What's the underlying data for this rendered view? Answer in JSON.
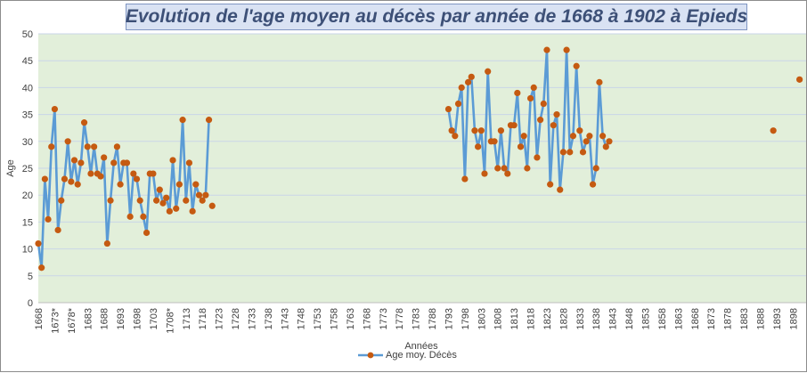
{
  "chart_data": {
    "type": "line",
    "title": "Evolution de l'age moyen au décès par année de 1668 à 1902 à Epieds",
    "xlabel": "Années",
    "ylabel": "Age",
    "ylim": [
      0,
      50
    ],
    "yticks": [
      0,
      5,
      10,
      15,
      20,
      25,
      30,
      35,
      40,
      45,
      50
    ],
    "xlim": [
      1668,
      1902
    ],
    "xtick_labels": [
      {
        "year": 1668,
        "label": "1668"
      },
      {
        "year": 1673,
        "label": "1673*"
      },
      {
        "year": 1678,
        "label": "1678*"
      },
      {
        "year": 1683,
        "label": "1683"
      },
      {
        "year": 1688,
        "label": "1688"
      },
      {
        "year": 1693,
        "label": "1693"
      },
      {
        "year": 1698,
        "label": "1698"
      },
      {
        "year": 1703,
        "label": "1703"
      },
      {
        "year": 1708,
        "label": "1708*"
      },
      {
        "year": 1713,
        "label": "1713"
      },
      {
        "year": 1718,
        "label": "1718"
      },
      {
        "year": 1723,
        "label": "1723"
      },
      {
        "year": 1728,
        "label": "1728"
      },
      {
        "year": 1733,
        "label": "1733"
      },
      {
        "year": 1738,
        "label": "1738"
      },
      {
        "year": 1743,
        "label": "1743"
      },
      {
        "year": 1748,
        "label": "1748"
      },
      {
        "year": 1753,
        "label": "1753"
      },
      {
        "year": 1758,
        "label": "1758"
      },
      {
        "year": 1763,
        "label": "1763"
      },
      {
        "year": 1768,
        "label": "1768"
      },
      {
        "year": 1773,
        "label": "1773"
      },
      {
        "year": 1778,
        "label": "1778"
      },
      {
        "year": 1783,
        "label": "1783"
      },
      {
        "year": 1788,
        "label": "1788"
      },
      {
        "year": 1793,
        "label": "1793"
      },
      {
        "year": 1798,
        "label": "1798"
      },
      {
        "year": 1803,
        "label": "1803"
      },
      {
        "year": 1808,
        "label": "1808"
      },
      {
        "year": 1813,
        "label": "1813"
      },
      {
        "year": 1818,
        "label": "1818"
      },
      {
        "year": 1823,
        "label": "1823"
      },
      {
        "year": 1828,
        "label": "1828"
      },
      {
        "year": 1833,
        "label": "1833"
      },
      {
        "year": 1838,
        "label": "1838"
      },
      {
        "year": 1843,
        "label": "1843"
      },
      {
        "year": 1848,
        "label": "1848"
      },
      {
        "year": 1853,
        "label": "1853"
      },
      {
        "year": 1858,
        "label": "1858"
      },
      {
        "year": 1863,
        "label": "1863"
      },
      {
        "year": 1868,
        "label": "1868"
      },
      {
        "year": 1873,
        "label": "1873"
      },
      {
        "year": 1878,
        "label": "1878"
      },
      {
        "year": 1883,
        "label": "1883"
      },
      {
        "year": 1888,
        "label": "1888"
      },
      {
        "year": 1893,
        "label": "1893"
      },
      {
        "year": 1898,
        "label": "1898"
      }
    ],
    "grid": true,
    "legend": "bottom",
    "series": [
      {
        "name": "Age moy. Décès",
        "line_color": "#5b9bd5",
        "marker_color": "#c55a11",
        "segments": [
          {
            "x": [
              1668,
              1669,
              1670,
              1671,
              1672,
              1673,
              1674,
              1675,
              1676,
              1677,
              1678,
              1679,
              1680,
              1681,
              1682,
              1683,
              1684,
              1685,
              1686,
              1687,
              1688,
              1689,
              1690,
              1691,
              1692,
              1693,
              1694,
              1695,
              1696,
              1697,
              1698,
              1699,
              1700,
              1701,
              1702,
              1703,
              1704,
              1705,
              1706,
              1707,
              1708,
              1709,
              1710,
              1711,
              1712,
              1713,
              1714,
              1715,
              1716,
              1717,
              1718,
              1719,
              1720
            ],
            "y": [
              11,
              6.5,
              23,
              15.5,
              29,
              36,
              13.5,
              19,
              23,
              30,
              22.5,
              26.5,
              22,
              26,
              33.5,
              29,
              24,
              29,
              24,
              23.5,
              27,
              11,
              19,
              26,
              29,
              22,
              26,
              26,
              16,
              24,
              23,
              19,
              16,
              13,
              24,
              24,
              19,
              21,
              18.5,
              19.5,
              17,
              26.5,
              17.5,
              22,
              34,
              19,
              26,
              17,
              22,
              20,
              19,
              20,
              34
            ]
          },
          {
            "x": [
              1721
            ],
            "y": [
              18
            ]
          },
          {
            "x": [
              1793,
              1794,
              1795,
              1796,
              1797,
              1798,
              1799,
              1800,
              1801,
              1802,
              1803,
              1804,
              1805,
              1806,
              1807,
              1808,
              1809,
              1810,
              1811,
              1812,
              1813,
              1814,
              1815,
              1816,
              1817,
              1818,
              1819,
              1820,
              1821,
              1822,
              1823,
              1824,
              1825,
              1826,
              1827,
              1828,
              1829,
              1830,
              1831,
              1832,
              1833,
              1834,
              1835,
              1836,
              1837,
              1838,
              1839,
              1840,
              1841,
              1842
            ],
            "y": [
              36,
              32,
              31,
              37,
              40,
              23,
              41,
              42,
              32,
              29,
              32,
              24,
              43,
              30,
              30,
              25,
              32,
              25,
              24,
              33,
              33,
              39,
              29,
              31,
              25,
              38,
              40,
              27,
              34,
              37,
              47,
              22,
              33,
              35,
              21,
              28,
              47,
              28,
              31,
              44,
              32,
              28,
              30,
              31,
              22,
              25,
              41,
              31,
              29,
              30
            ]
          },
          {
            "x": [
              1892
            ],
            "y": [
              32
            ]
          },
          {
            "x": [
              1900
            ],
            "y": [
              41.5
            ]
          }
        ]
      }
    ]
  }
}
